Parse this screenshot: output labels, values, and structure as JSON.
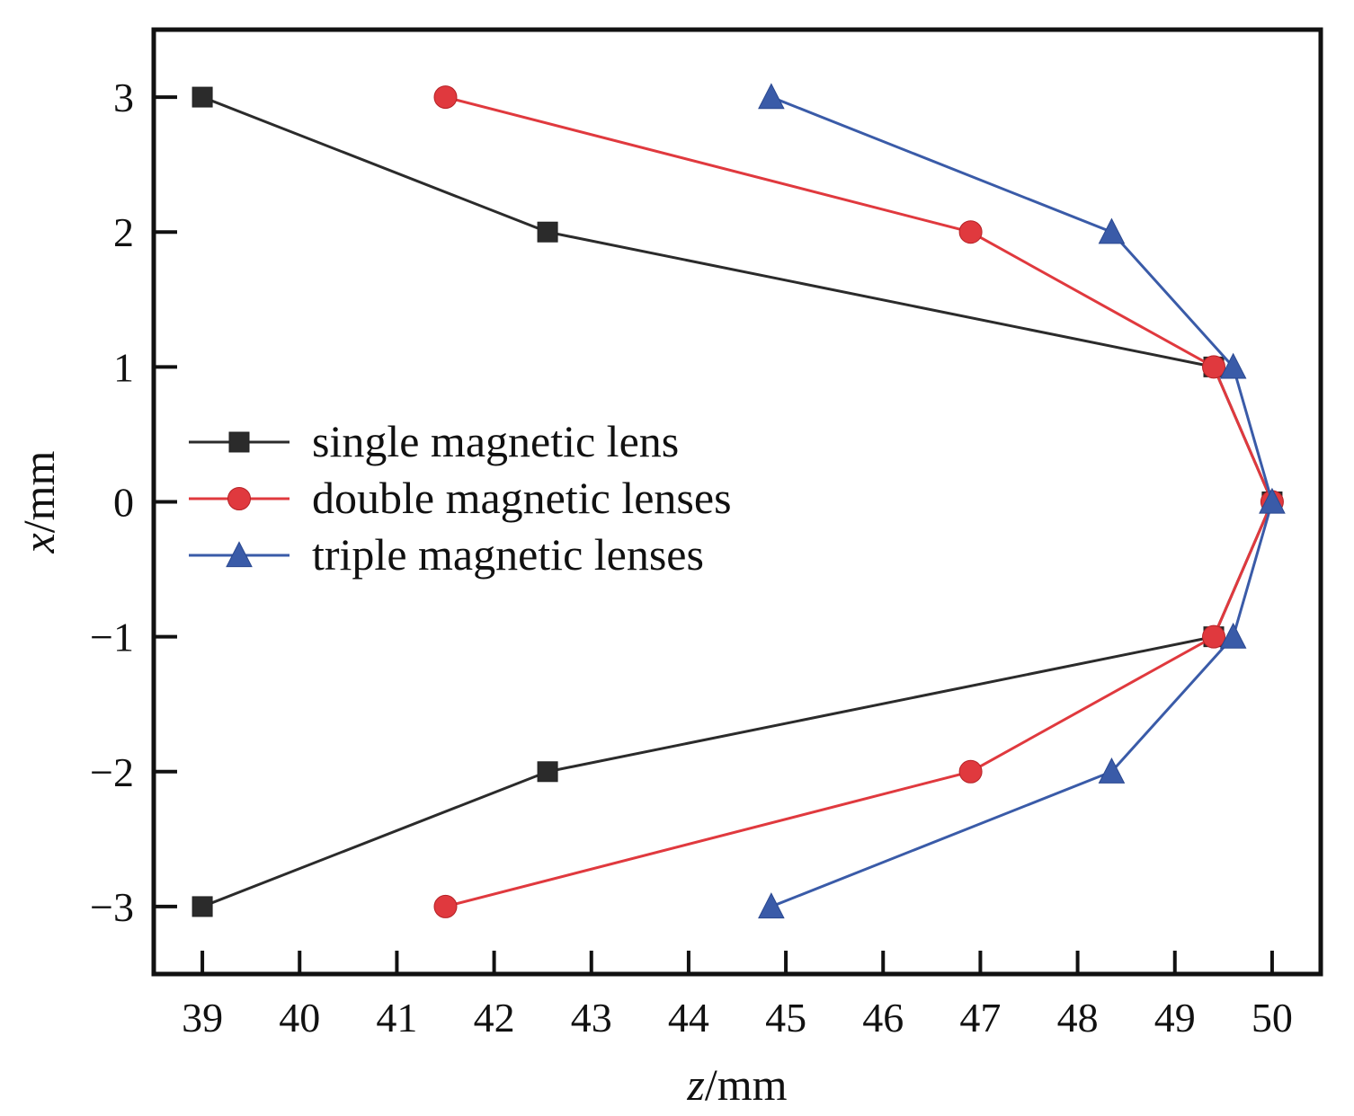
{
  "chart_data": {
    "type": "line",
    "xlabel_var": "z",
    "xlabel_unit": "/mm",
    "ylabel_var": "x",
    "ylabel_unit": "/mm",
    "xlim": [
      38.5,
      50.5
    ],
    "ylim": [
      -3.5,
      3.5
    ],
    "xticks": [
      39,
      40,
      41,
      42,
      43,
      44,
      45,
      46,
      47,
      48,
      49,
      50
    ],
    "xtick_labels": [
      "39",
      "40",
      "41",
      "42",
      "43",
      "44",
      "45",
      "46",
      "47",
      "48",
      "49",
      "50"
    ],
    "yticks": [
      3,
      2,
      1,
      0,
      -1,
      -2,
      -3
    ],
    "ytick_labels": [
      "3",
      "2",
      "1",
      "0",
      "−1",
      "−2",
      "−3"
    ],
    "grid": false,
    "legend_position": "center-left",
    "series": [
      {
        "name": "single magnetic lens",
        "color": "#2b2b2b",
        "marker": "square",
        "x": [
          39.0,
          42.55,
          49.4,
          50.0,
          49.4,
          42.55,
          39.0
        ],
        "y": [
          3,
          2,
          1,
          0,
          -1,
          -2,
          -3
        ]
      },
      {
        "name": "double magnetic lenses",
        "color": "#e0393e",
        "marker": "circle",
        "x": [
          41.5,
          46.9,
          49.4,
          50.0,
          49.4,
          46.9,
          41.5
        ],
        "y": [
          3,
          2,
          1,
          0,
          -1,
          -2,
          -3
        ]
      },
      {
        "name": "triple magnetic lenses",
        "color": "#3a5ba8",
        "marker": "triangle",
        "x": [
          44.85,
          48.35,
          49.6,
          50.0,
          49.6,
          48.35,
          44.85
        ],
        "y": [
          3,
          2,
          1,
          0,
          -1,
          -2,
          -3
        ]
      }
    ]
  }
}
